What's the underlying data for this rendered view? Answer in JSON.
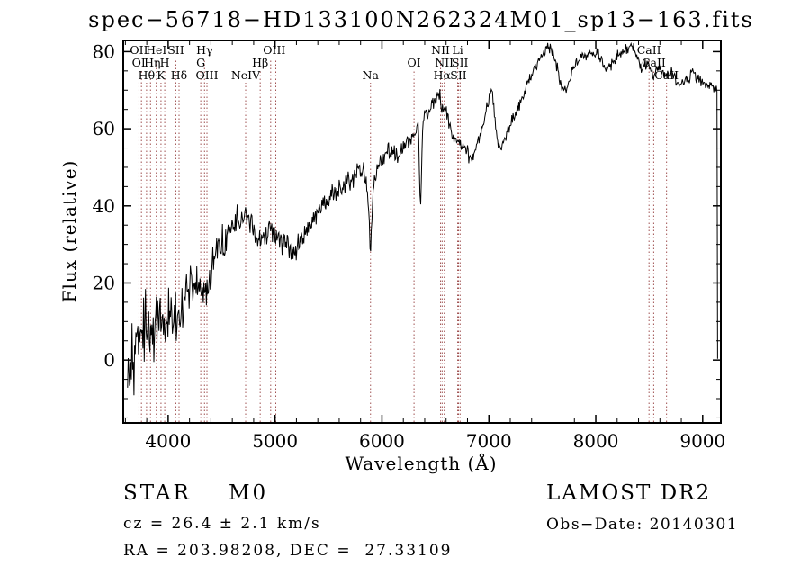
{
  "chart_data": {
    "type": "line",
    "title": "spec−56718−HD133100N262324M01_sp13−163.fits",
    "xlabel": "Wavelength (Å)",
    "ylabel": "Flux (relative)",
    "xlim": [
      3580,
      9170
    ],
    "ylim": [
      -16.3,
      82.9
    ],
    "xticks": [
      4000,
      5000,
      6000,
      7000,
      8000,
      9000
    ],
    "yticks": [
      0,
      20,
      40,
      60,
      80
    ],
    "x_minor_step": 200,
    "y_minor_step": 5,
    "grid": false,
    "legend": "none",
    "trace_color": "#000000",
    "marker_color": "#a05252",
    "spectral_lines": [
      {
        "wavelength": 3727,
        "label": "OII",
        "row": 1
      },
      {
        "wavelength": 3750,
        "label": "OI",
        "row": 2,
        "dx": -3
      },
      {
        "wavelength": 3798,
        "label": "Hθ",
        "row": 3
      },
      {
        "wavelength": 3835,
        "label": "Hη",
        "row": 2,
        "dx": 2
      },
      {
        "wavelength": 3889,
        "label": "HeI",
        "row": 1
      },
      {
        "wavelength": 3933,
        "label": "K",
        "row": 3
      },
      {
        "wavelength": 3968,
        "label": "H",
        "row": 2
      },
      {
        "wavelength": 4072,
        "label": "SII",
        "row": 1
      },
      {
        "wavelength": 4102,
        "label": "Hδ",
        "row": 3
      },
      {
        "wavelength": 4305,
        "label": "G",
        "row": 2
      },
      {
        "wavelength": 4340,
        "label": "Hγ",
        "row": 1
      },
      {
        "wavelength": 4363,
        "label": "OIII",
        "row": 3
      },
      {
        "wavelength": 4725,
        "label": "NeIV",
        "row": 3
      },
      {
        "wavelength": 4861,
        "label": "Hβ",
        "row": 2
      },
      {
        "wavelength": 4959,
        "label": "OIII",
        "row": 1,
        "dx": 4
      },
      {
        "wavelength": 5007,
        "label": "",
        "row": 1
      },
      {
        "wavelength": 5893,
        "label": "Na",
        "row": 3
      },
      {
        "wavelength": 6300,
        "label": "OI",
        "row": 2
      },
      {
        "wavelength": 6548,
        "label": "NII",
        "row": 1
      },
      {
        "wavelength": 6563,
        "label": "Hα",
        "row": 3
      },
      {
        "wavelength": 6583,
        "label": "NII",
        "row": 2
      },
      {
        "wavelength": 6708,
        "label": "Li",
        "row": 1
      },
      {
        "wavelength": 6716,
        "label": "SII",
        "row": 3
      },
      {
        "wavelength": 6731,
        "label": "SII",
        "row": 2
      },
      {
        "wavelength": 8498,
        "label": "CaII",
        "row": 1
      },
      {
        "wavelength": 8542,
        "label": "CaII",
        "row": 2
      },
      {
        "wavelength": 8662,
        "label": "CaII",
        "row": 3
      }
    ],
    "spectrum_anchors": [
      [
        3620,
        1
      ],
      [
        3660,
        4
      ],
      [
        3700,
        6
      ],
      [
        3740,
        4
      ],
      [
        3780,
        7
      ],
      [
        3820,
        8
      ],
      [
        3860,
        7
      ],
      [
        3900,
        9
      ],
      [
        3940,
        8
      ],
      [
        3980,
        11
      ],
      [
        4020,
        13
      ],
      [
        4060,
        12
      ],
      [
        4100,
        11
      ],
      [
        4140,
        15
      ],
      [
        4180,
        17
      ],
      [
        4220,
        19
      ],
      [
        4260,
        20
      ],
      [
        4300,
        17
      ],
      [
        4340,
        16
      ],
      [
        4380,
        22
      ],
      [
        4420,
        25
      ],
      [
        4460,
        28
      ],
      [
        4500,
        30
      ],
      [
        4550,
        33
      ],
      [
        4600,
        35
      ],
      [
        4650,
        36
      ],
      [
        4700,
        37
      ],
      [
        4750,
        38
      ],
      [
        4800,
        34
      ],
      [
        4840,
        31
      ],
      [
        4870,
        30
      ],
      [
        4900,
        32
      ],
      [
        4940,
        33
      ],
      [
        4980,
        34
      ],
      [
        5020,
        33
      ],
      [
        5060,
        31
      ],
      [
        5120,
        29
      ],
      [
        5180,
        28
      ],
      [
        5240,
        31
      ],
      [
        5300,
        34
      ],
      [
        5360,
        37
      ],
      [
        5420,
        39
      ],
      [
        5480,
        41
      ],
      [
        5540,
        43
      ],
      [
        5600,
        45
      ],
      [
        5660,
        46
      ],
      [
        5720,
        47
      ],
      [
        5780,
        49
      ],
      [
        5830,
        50
      ],
      [
        5870,
        42
      ],
      [
        5893,
        27
      ],
      [
        5920,
        46
      ],
      [
        5960,
        50
      ],
      [
        6000,
        52
      ],
      [
        6050,
        54
      ],
      [
        6100,
        55
      ],
      [
        6150,
        52
      ],
      [
        6200,
        55
      ],
      [
        6250,
        57
      ],
      [
        6300,
        59
      ],
      [
        6340,
        61
      ],
      [
        6360,
        38
      ],
      [
        6380,
        60
      ],
      [
        6400,
        63
      ],
      [
        6450,
        65
      ],
      [
        6500,
        67
      ],
      [
        6540,
        69
      ],
      [
        6563,
        65
      ],
      [
        6590,
        66
      ],
      [
        6620,
        62
      ],
      [
        6650,
        59
      ],
      [
        6680,
        57
      ],
      [
        6720,
        56
      ],
      [
        6760,
        55
      ],
      [
        6800,
        54
      ],
      [
        6840,
        52
      ],
      [
        6880,
        55
      ],
      [
        6920,
        58
      ],
      [
        6960,
        63
      ],
      [
        7000,
        68
      ],
      [
        7030,
        71
      ],
      [
        7060,
        62
      ],
      [
        7090,
        55
      ],
      [
        7120,
        56
      ],
      [
        7160,
        58
      ],
      [
        7200,
        61
      ],
      [
        7250,
        64
      ],
      [
        7300,
        67
      ],
      [
        7350,
        71
      ],
      [
        7400,
        74
      ],
      [
        7450,
        77
      ],
      [
        7500,
        79
      ],
      [
        7550,
        81
      ],
      [
        7600,
        80
      ],
      [
        7640,
        76
      ],
      [
        7680,
        71
      ],
      [
        7720,
        70
      ],
      [
        7760,
        73
      ],
      [
        7800,
        76
      ],
      [
        7850,
        78
      ],
      [
        7900,
        79
      ],
      [
        7950,
        79
      ],
      [
        8000,
        80
      ],
      [
        8050,
        78
      ],
      [
        8100,
        75
      ],
      [
        8150,
        77
      ],
      [
        8200,
        79
      ],
      [
        8250,
        80
      ],
      [
        8300,
        81
      ],
      [
        8350,
        81
      ],
      [
        8400,
        78
      ],
      [
        8430,
        75
      ],
      [
        8460,
        77
      ],
      [
        8500,
        76
      ],
      [
        8540,
        74
      ],
      [
        8580,
        76
      ],
      [
        8620,
        75
      ],
      [
        8660,
        74
      ],
      [
        8700,
        75
      ],
      [
        8750,
        73
      ],
      [
        8800,
        72
      ],
      [
        8850,
        73
      ],
      [
        8900,
        74
      ],
      [
        8950,
        73
      ],
      [
        9000,
        72
      ],
      [
        9050,
        71
      ],
      [
        9100,
        71
      ],
      [
        9130,
        70
      ],
      [
        9136,
        70
      ],
      [
        9140,
        2
      ]
    ],
    "noise_profile": [
      [
        3620,
        13
      ],
      [
        3750,
        11
      ],
      [
        3900,
        9
      ],
      [
        4100,
        7
      ],
      [
        4300,
        5.5
      ],
      [
        4600,
        4.2
      ],
      [
        4900,
        3.4
      ],
      [
        5300,
        2.9
      ],
      [
        5900,
        2.5
      ],
      [
        6500,
        2.1
      ],
      [
        7000,
        1.9
      ],
      [
        7600,
        1.7
      ],
      [
        8300,
        1.6
      ],
      [
        9000,
        1.8
      ],
      [
        9140,
        2
      ]
    ],
    "sampling": {
      "start": 3620,
      "end": 9140,
      "step": 6
    },
    "noise_seed": 20140301
  },
  "footer": {
    "class_label": "STAR    M0",
    "survey": "LAMOST DR2",
    "cz": "cz = 26.4 ± 2.1 km/s",
    "obs_date": "Obs−Date: 20140301",
    "ra_dec": "RA = 203.98208, DEC =  27.33109"
  }
}
